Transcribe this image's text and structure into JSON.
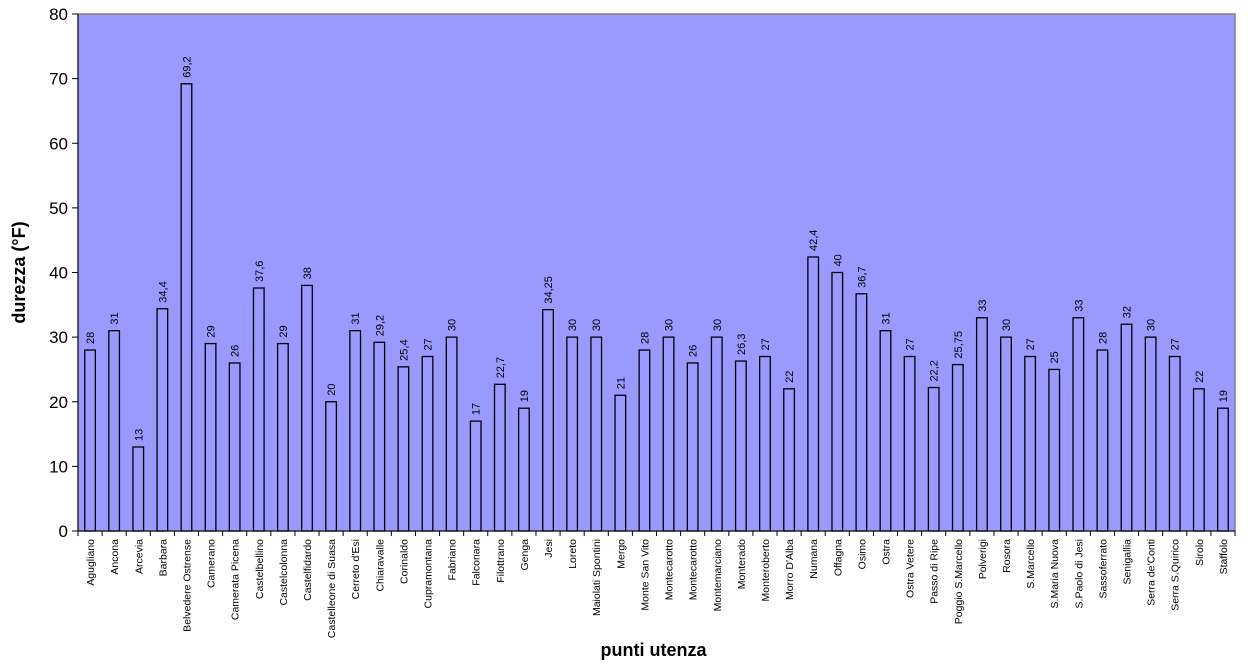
{
  "chart_data": {
    "type": "bar",
    "xlabel": "punti utenza",
    "ylabel": "durezza (°F)",
    "ylim": [
      0,
      80
    ],
    "yticks": [
      0,
      10,
      20,
      30,
      40,
      50,
      60,
      70,
      80
    ],
    "grid": false,
    "colors": {
      "plot_background": "#9999ff",
      "bar_fill": "#9999ff",
      "bar_stroke": "#000000",
      "plot_border": "#808080"
    },
    "categories": [
      "Agugliano",
      "Ancona",
      "Arcevia",
      "Barbara",
      "Belvedere Ostrense",
      "Camerano",
      "Camerata Picena",
      "Castelbellino",
      "Castelcolonna",
      "Castelfidardo",
      "Castelleone di Suasa",
      "Cerreto d'Esi",
      "Chiaravalle",
      "Corinaldo",
      "Cupramontana",
      "Fabriano",
      "Falconara",
      "Filottrano",
      "Genga",
      "Jesi",
      "Loreto",
      "Maiolati Spontini",
      "Mergo",
      "Monte San Vito",
      "Montecarotto",
      "Montecarotto",
      "Montemarciano",
      "Monterado",
      "Monteroberto",
      "Morro D'Alba",
      "Numana",
      "Offagna",
      "Osimo",
      "Ostra",
      "Ostra Vetere",
      "Passo di Ripe",
      "Poggio S.Marcello",
      "Polverigi",
      "Rosora",
      "S.Marcello",
      "S.Maria Nuova",
      "S.Paolo di Jesi",
      "Sassoferrato",
      "Senigallia",
      "Serra de'Conti",
      "Serra S.Quirico",
      "Sirolo",
      "Staffolo"
    ],
    "values": [
      28,
      31,
      13,
      34.4,
      69.2,
      29,
      26,
      37.6,
      29,
      38,
      20,
      31,
      29.2,
      25.4,
      27,
      30,
      17,
      22.7,
      19,
      34.25,
      30,
      30,
      21,
      28,
      30,
      26,
      30,
      26.3,
      27,
      22,
      42.4,
      40,
      36.7,
      31,
      27,
      22.2,
      25.75,
      33,
      30,
      27,
      25,
      33,
      28,
      32,
      30,
      27,
      22,
      19
    ],
    "data_labels": [
      "28",
      "31",
      "13",
      "34,4",
      "69,2",
      "29",
      "26",
      "37,6",
      "29",
      "38",
      "20",
      "31",
      "29,2",
      "25,4",
      "27",
      "30",
      "17",
      "22,7",
      "19",
      "34,25",
      "30",
      "30",
      "21",
      "28",
      "30",
      "26",
      "30",
      "26,3",
      "27",
      "22",
      "42,4",
      "40",
      "36,7",
      "31",
      "27",
      "22,2",
      "25,75",
      "33",
      "30",
      "27",
      "25",
      "33",
      "28",
      "32",
      "30",
      "27",
      "22",
      "19"
    ]
  }
}
